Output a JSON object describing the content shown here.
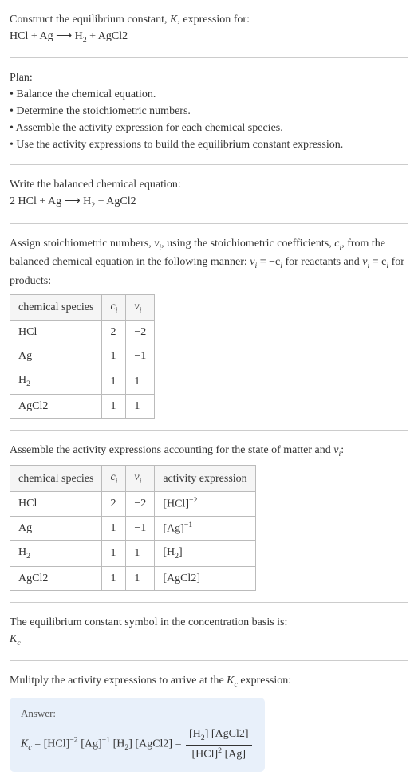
{
  "intro": {
    "line1_a": "Construct the equilibrium constant, ",
    "line1_b": ", expression for:",
    "reaction": "HCl + Ag ⟶ H",
    "reaction_sub": "2",
    "reaction_tail": " + AgCl2"
  },
  "plan": {
    "heading": "Plan:",
    "b1": "• Balance the chemical equation.",
    "b2": "• Determine the stoichiometric numbers.",
    "b3": "• Assemble the activity expression for each chemical species.",
    "b4": "• Use the activity expressions to build the equilibrium constant expression."
  },
  "balanced": {
    "heading": "Write the balanced chemical equation:",
    "eq_a": "2 HCl + Ag ⟶ H",
    "eq_sub": "2",
    "eq_b": " + AgCl2"
  },
  "stoich": {
    "text_a": "Assign stoichiometric numbers, ",
    "nu": "ν",
    "sub_i": "i",
    "text_b": ", using the stoichiometric coefficients, ",
    "c": "c",
    "text_c": ", from the balanced chemical equation in the following manner: ",
    "rel1_a": "ν",
    "rel1_b": " = −c",
    "text_d": " for reactants and ",
    "rel2_a": "ν",
    "rel2_b": " = c",
    "text_e": " for products:",
    "h1": "chemical species",
    "h2": "c",
    "h3": "ν",
    "r1s": "HCl",
    "r1c": "2",
    "r1n": "−2",
    "r2s": "Ag",
    "r2c": "1",
    "r2n": "−1",
    "r3s": "H",
    "r3sub": "2",
    "r3c": "1",
    "r3n": "1",
    "r4s": "AgCl2",
    "r4c": "1",
    "r4n": "1"
  },
  "activity": {
    "heading_a": "Assemble the activity expressions accounting for the state of matter and ",
    "heading_b": ":",
    "nu": "ν",
    "sub_i": "i",
    "h1": "chemical species",
    "h2": "c",
    "h3": "ν",
    "h4": "activity expression",
    "r1s": "HCl",
    "r1c": "2",
    "r1n": "−2",
    "r1a_base": "[HCl]",
    "r1a_exp": "−2",
    "r2s": "Ag",
    "r2c": "1",
    "r2n": "−1",
    "r2a_base": "[Ag]",
    "r2a_exp": "−1",
    "r3s": "H",
    "r3sub": "2",
    "r3c": "1",
    "r3n": "1",
    "r3a": "[H",
    "r3a_sub": "2",
    "r3a_tail": "]",
    "r4s": "AgCl2",
    "r4c": "1",
    "r4n": "1",
    "r4a": "[AgCl2]"
  },
  "symbol": {
    "line": "The equilibrium constant symbol in the concentration basis is:",
    "K": "K",
    "sub": "c"
  },
  "multiply": {
    "line_a": "Mulitply the activity expressions to arrive at the ",
    "K": "K",
    "sub": "c",
    "line_b": " expression:"
  },
  "answer": {
    "label": "Answer:",
    "lhs_K": "K",
    "lhs_sub": "c",
    "eq1_a": " = [HCl]",
    "eq1_e1": "−2",
    "eq1_b": " [Ag]",
    "eq1_e2": "−1",
    "eq1_c": " [H",
    "eq1_c_sub": "2",
    "eq1_d": "] [AgCl2] = ",
    "num_a": "[H",
    "num_sub": "2",
    "num_b": "] [AgCl2]",
    "den_a": "[HCl]",
    "den_e": "2",
    "den_b": " [Ag]"
  },
  "style": {
    "italic_K": "K"
  }
}
